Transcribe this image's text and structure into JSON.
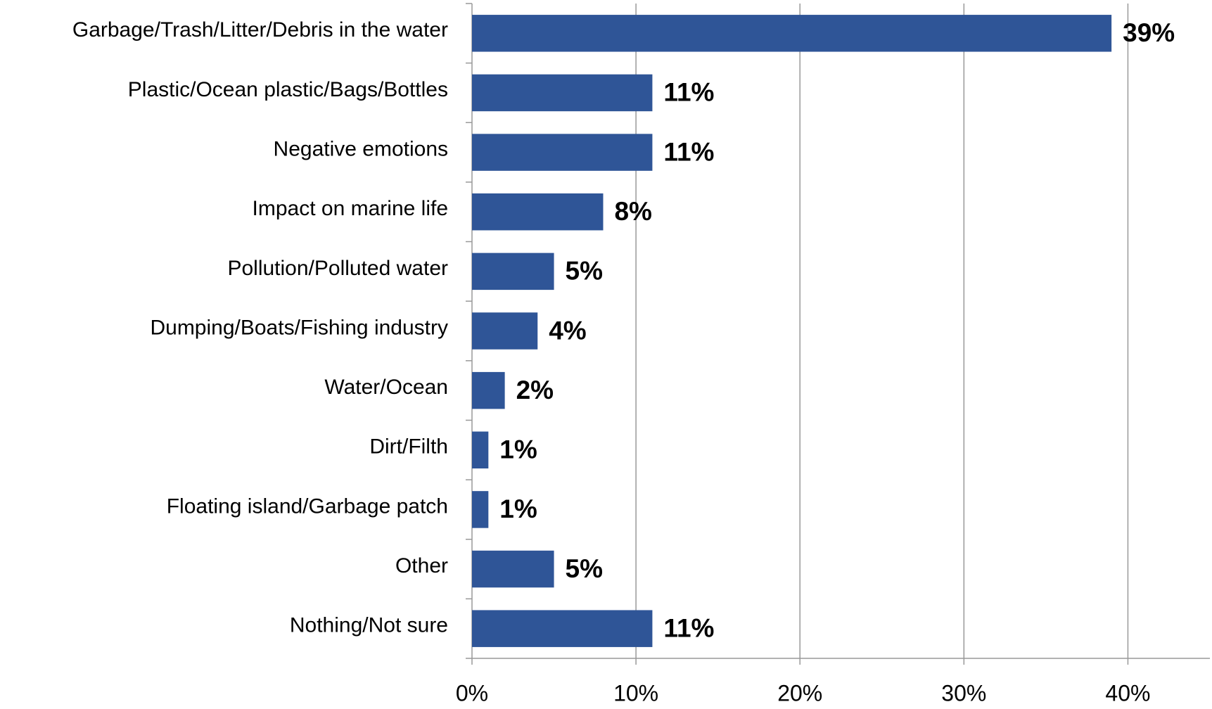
{
  "chart_data": {
    "type": "hbar",
    "categories": [
      "Garbage/Trash/Litter/Debris in the water",
      "Plastic/Ocean plastic/Bags/Bottles",
      "Negative emotions",
      "Impact on marine life",
      "Pollution/Polluted water",
      "Dumping/Boats/Fishing industry",
      "Water/Ocean",
      "Dirt/Filth",
      "Floating island/Garbage patch",
      "Other",
      "Nothing/Not sure"
    ],
    "values": [
      39,
      11,
      11,
      8,
      5,
      4,
      2,
      1,
      1,
      5,
      11
    ],
    "value_labels": [
      "39%",
      "11%",
      "11%",
      "8%",
      "5%",
      "4%",
      "2%",
      "1%",
      "1%",
      "5%",
      "11%"
    ],
    "color": "#2f5597",
    "xlim": [
      0,
      45
    ],
    "xticks": [
      {
        "value": 0,
        "label": "0%"
      },
      {
        "value": 10,
        "label": "10%"
      },
      {
        "value": 20,
        "label": "20%"
      },
      {
        "value": 30,
        "label": "30%"
      },
      {
        "value": 40,
        "label": "40%"
      }
    ],
    "grid": true
  }
}
